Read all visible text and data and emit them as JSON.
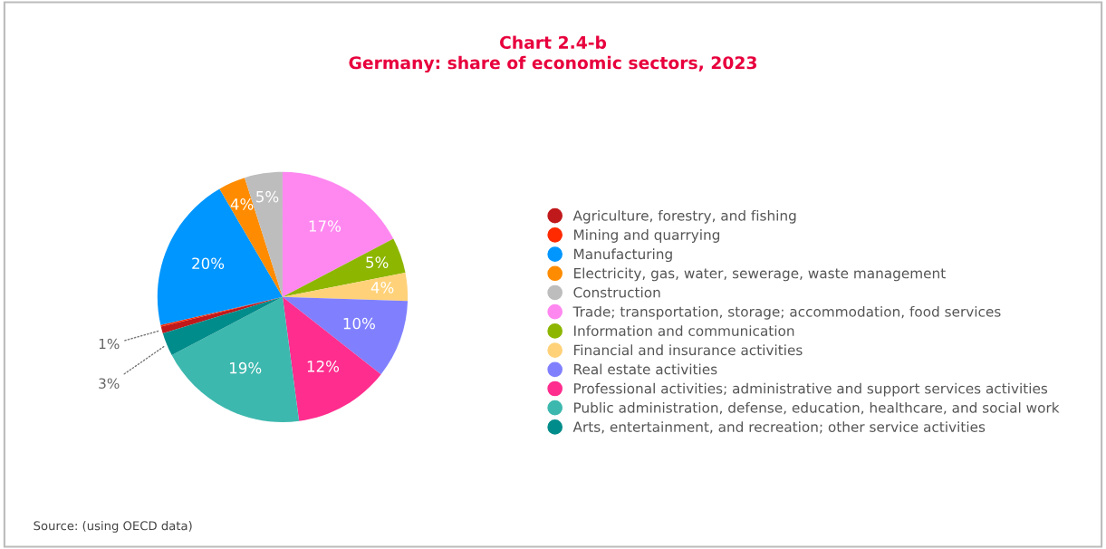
{
  "chart_data": {
    "type": "pie",
    "title": "Chart 2.4-b\nGermany: share of economic sectors, 2023",
    "categories": [
      "Agriculture, forestry, and fishing",
      "Mining and quarrying",
      "Manufacturing",
      "Electricity, gas, water, sewerage, waste management",
      "Construction",
      "Trade; transportation, storage; accommodation, food services",
      "Information and communication",
      "Financial and insurance activities",
      "Real estate activities",
      "Professional activities; administrative and support services activities",
      "Public administration, defense, education, healthcare, and social work",
      "Arts, entertainment, and recreation; other service activities"
    ],
    "values": [
      0.9,
      0.2,
      20.2,
      3.5,
      4.9,
      17.3,
      4.6,
      3.6,
      10.1,
      12.3,
      19.4,
      3.0
    ],
    "colors": [
      "#c0191c",
      "#ff2a00",
      "#0096ff",
      "#ff8c00",
      "#bdbdbd",
      "#ff88f0",
      "#8db600",
      "#ffd27a",
      "#8080ff",
      "#ff2d8e",
      "#3db8ae",
      "#008c8a"
    ],
    "value_labels": [
      "1%",
      null,
      "20%",
      "4%",
      "5%",
      "17%",
      "5%",
      "4%",
      "10%",
      "12%",
      "19%",
      "3%"
    ],
    "legend": "right",
    "annotations": [
      "Source: (using OECD data)"
    ]
  }
}
